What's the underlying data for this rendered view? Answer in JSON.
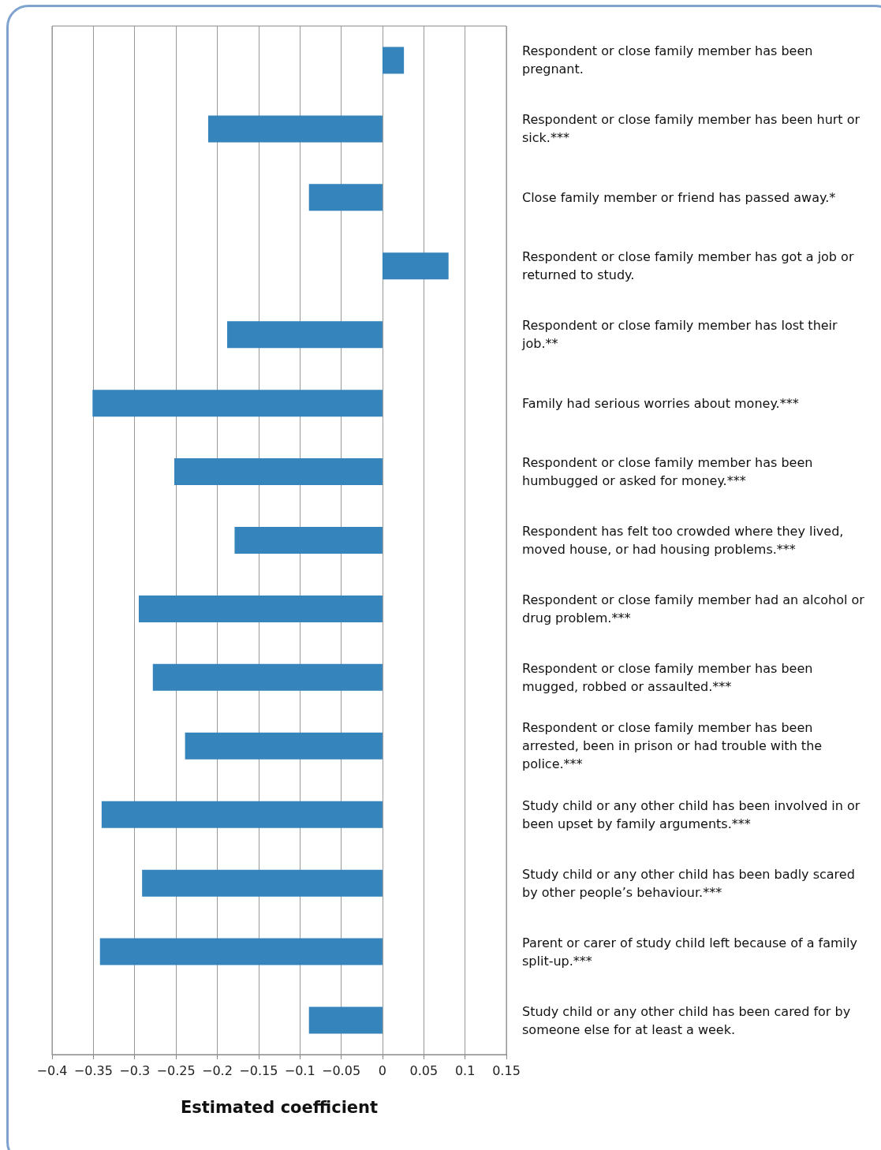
{
  "chart_data": {
    "type": "bar",
    "orientation": "horizontal",
    "xlabel": "Estimated coefficient",
    "categories": [
      "Respondent or close family member has been pregnant.",
      "Respondent or close family member has been hurt or sick.***",
      "Close family member or friend has passed away.*",
      "Respondent or close family member has got a job or returned to study.",
      "Respondent or close family member has lost their job.**",
      "Family had serious worries about money.***",
      "Respondent or close family member has been humbugged or asked for money.***",
      "Respondent has felt too crowded where they lived, moved house, or had housing problems.***",
      "Respondent or close family member had an alcohol or drug problem.***",
      "Respondent or close family member has been mugged, robbed or assaulted.***",
      "Respondent or close family member has been arrested, been in prison or had trouble with the police.***",
      "Study child or any other child has been involved in or been upset by family arguments.***",
      "Study child or any other child has been badly scared by other people’s behaviour.***",
      "Parent or carer of study child left because of a family split-up.***",
      "Study child or any other child has been cared for by someone else for at least a week."
    ],
    "values": [
      0.026,
      -0.211,
      -0.089,
      0.08,
      -0.188,
      -0.351,
      -0.252,
      -0.179,
      -0.295,
      -0.278,
      -0.239,
      -0.34,
      -0.291,
      -0.342,
      -0.089
    ],
    "color": "#3584bc",
    "xlim": [
      -0.4,
      0.15
    ],
    "xticks": [
      {
        "value": -0.4,
        "label": "−0.4"
      },
      {
        "value": -0.35,
        "label": "−0.35"
      },
      {
        "value": -0.3,
        "label": "−0.3"
      },
      {
        "value": -0.25,
        "label": "−0.25"
      },
      {
        "value": -0.2,
        "label": "−0.2"
      },
      {
        "value": -0.15,
        "label": "−0.15"
      },
      {
        "value": -0.1,
        "label": "−0.1"
      },
      {
        "value": -0.05,
        "label": "−0.05"
      },
      0,
      0.05,
      0.1,
      0.15
    ],
    "grid": "x"
  }
}
